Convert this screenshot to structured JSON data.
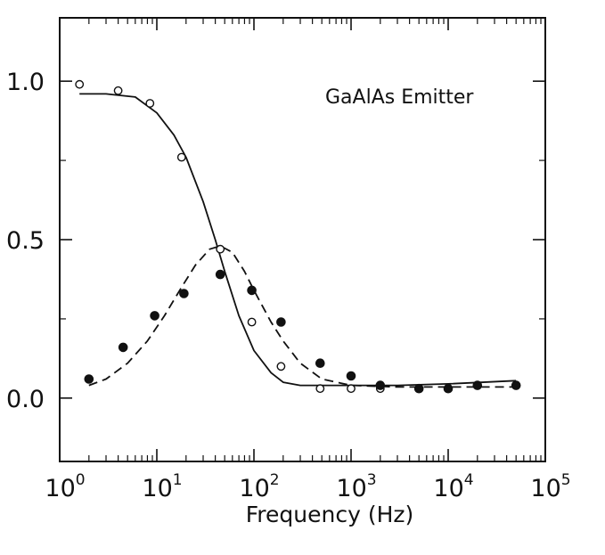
{
  "chart_data": {
    "type": "scatter",
    "title": "",
    "annotation": "GaAlAs Emitter",
    "xlabel": "Frequency (Hz)",
    "ylabel": "",
    "x_scale": "log",
    "xlim": [
      1,
      100000
    ],
    "ylim": [
      -0.2,
      1.2
    ],
    "grid": false,
    "x_ticks": [
      {
        "base": "10",
        "exp": "0",
        "value": 1
      },
      {
        "base": "10",
        "exp": "1",
        "value": 10
      },
      {
        "base": "10",
        "exp": "2",
        "value": 100
      },
      {
        "base": "10",
        "exp": "3",
        "value": 1000
      },
      {
        "base": "10",
        "exp": "4",
        "value": 10000
      },
      {
        "base": "10",
        "exp": "5",
        "value": 100000
      }
    ],
    "y_ticks": [
      {
        "label": "0.0",
        "value": 0.0
      },
      {
        "label": "0.5",
        "value": 0.5
      },
      {
        "label": "1.0",
        "value": 1.0
      }
    ],
    "series": [
      {
        "marker": "open-circle",
        "color": "#111111",
        "x": [
          1.6,
          4,
          8.5,
          18,
          45,
          95,
          190,
          480,
          1000,
          2000
        ],
        "y": [
          0.99,
          0.97,
          0.93,
          0.76,
          0.47,
          0.24,
          0.1,
          0.03,
          0.03,
          0.03
        ]
      },
      {
        "marker": "filled-circle",
        "color": "#111111",
        "x": [
          2,
          4.5,
          9.5,
          19,
          45,
          95,
          190,
          480,
          1000,
          2000,
          5000,
          10000,
          20000,
          50000
        ],
        "y": [
          0.06,
          0.16,
          0.26,
          0.33,
          0.39,
          0.34,
          0.24,
          0.11,
          0.07,
          0.04,
          0.03,
          0.03,
          0.04,
          0.04
        ]
      }
    ],
    "fit_curves": [
      {
        "style": "solid",
        "x": [
          1.6,
          3,
          6,
          10,
          15,
          20,
          30,
          40,
          50,
          70,
          100,
          150,
          200,
          300,
          500,
          1000,
          3000,
          10000,
          50000
        ],
        "y": [
          0.96,
          0.96,
          0.95,
          0.9,
          0.83,
          0.76,
          0.62,
          0.5,
          0.4,
          0.26,
          0.15,
          0.08,
          0.05,
          0.04,
          0.04,
          0.04,
          0.04,
          0.045,
          0.055
        ]
      },
      {
        "style": "dashed",
        "x": [
          2,
          3,
          5,
          8,
          12,
          18,
          25,
          35,
          45,
          60,
          80,
          100,
          150,
          200,
          300,
          500,
          1000,
          3000,
          10000,
          50000
        ],
        "y": [
          0.04,
          0.06,
          0.11,
          0.18,
          0.26,
          0.35,
          0.42,
          0.47,
          0.48,
          0.46,
          0.4,
          0.34,
          0.24,
          0.18,
          0.11,
          0.06,
          0.04,
          0.035,
          0.035,
          0.035
        ]
      }
    ]
  }
}
